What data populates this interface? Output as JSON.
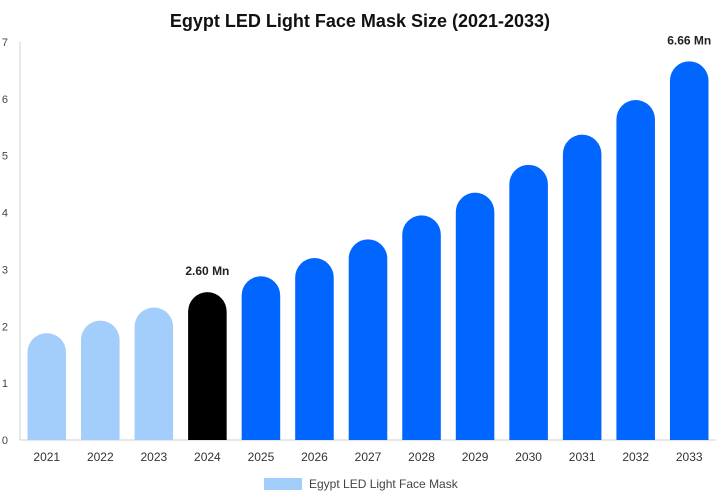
{
  "chart_data": {
    "type": "bar",
    "title": "Egypt LED Light Face Mask Size (2021-2033)",
    "xlabel": "",
    "ylabel": "",
    "categories": [
      "2021",
      "2022",
      "2023",
      "2024",
      "2025",
      "2026",
      "2027",
      "2028",
      "2029",
      "2030",
      "2031",
      "2032",
      "2033"
    ],
    "series": [
      {
        "name": "Egypt LED Light Face Mask",
        "values": [
          1.88,
          2.1,
          2.33,
          2.6,
          2.88,
          3.2,
          3.53,
          3.95,
          4.35,
          4.84,
          5.37,
          5.98,
          6.66
        ]
      }
    ],
    "ylim": [
      0,
      7
    ],
    "yticks": [
      "0",
      "1",
      "2",
      "3",
      "4",
      "5",
      "6",
      "7"
    ],
    "data_labels": [
      {
        "category": "2024",
        "text": "2.60 Mn"
      },
      {
        "category": "2033",
        "text": "6.66 Mn"
      }
    ],
    "grid": false,
    "legend_position": "bottom-center",
    "colors": {
      "historical": "#a3cdfb",
      "current": "#000000",
      "forecast": "#0066ff",
      "legend": "#a3cdfb"
    },
    "highlight_category": "2024"
  }
}
